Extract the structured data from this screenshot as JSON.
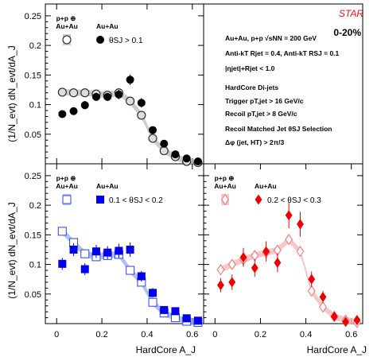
{
  "chart_data": [
    {
      "type": "scatter",
      "panel": "top-left",
      "x": [
        0.025,
        0.075,
        0.125,
        0.175,
        0.225,
        0.275,
        0.325,
        0.375,
        0.425,
        0.475,
        0.525,
        0.575,
        0.625
      ],
      "xlim": [
        -0.05,
        0.65
      ],
      "ylim": [
        0.0,
        0.27
      ],
      "ylabel": "(1/N_evt) dN_evt/dA_J",
      "legend": {
        "pp_label": "p+p ⊕ Au+Au",
        "auau_label": "Au+Au",
        "selection": "θSJ > 0.1"
      },
      "series": [
        {
          "name": "p+p ⊕ Au+Au",
          "style": "open-circle",
          "color": "#888888",
          "values": [
            0.121,
            0.12,
            0.12,
            0.118,
            0.116,
            0.12,
            0.106,
            0.082,
            0.043,
            0.022,
            0.012,
            0.004,
            0.002
          ]
        },
        {
          "name": "Au+Au",
          "style": "filled-circle",
          "color": "#000000",
          "values": [
            0.084,
            0.089,
            0.099,
            0.113,
            0.113,
            0.117,
            0.142,
            0.103,
            0.057,
            0.034,
            0.016,
            0.009,
            0.004
          ],
          "errors": [
            0.006,
            0.006,
            0.007,
            0.007,
            0.007,
            0.008,
            0.009,
            0.008,
            0.006,
            0.005,
            0.004,
            0.003,
            0.002
          ]
        }
      ]
    },
    {
      "type": "scatter",
      "panel": "bottom-left",
      "x": [
        0.025,
        0.075,
        0.125,
        0.175,
        0.225,
        0.275,
        0.325,
        0.375,
        0.425,
        0.475,
        0.525,
        0.575,
        0.625
      ],
      "xlim": [
        -0.05,
        0.65
      ],
      "ylim": [
        0.0,
        0.27
      ],
      "xlabel": "HardCore A_J",
      "ylabel": "(1/N_evt) dN_evt/dA_J",
      "legend": {
        "pp_label": "p+p ⊕ Au+Au",
        "auau_label": "Au+Au",
        "selection": "0.1 < θSJ < 0.2"
      },
      "series": [
        {
          "name": "p+p ⊕ Au+Au",
          "style": "open-square",
          "color": "#3355ee",
          "values": [
            0.156,
            0.137,
            0.118,
            0.113,
            0.115,
            0.117,
            0.09,
            0.07,
            0.036,
            0.018,
            0.01,
            0.004,
            0.002
          ]
        },
        {
          "name": "Au+Au",
          "style": "filled-square",
          "color": "#0000ee",
          "values": [
            0.101,
            0.125,
            0.092,
            0.122,
            0.12,
            0.123,
            0.125,
            0.08,
            0.052,
            0.023,
            0.021,
            0.009,
            0.005
          ],
          "errors": [
            0.01,
            0.011,
            0.01,
            0.011,
            0.011,
            0.012,
            0.012,
            0.009,
            0.008,
            0.006,
            0.005,
            0.004,
            0.003
          ]
        }
      ]
    },
    {
      "type": "scatter",
      "panel": "bottom-right",
      "x": [
        0.025,
        0.075,
        0.125,
        0.175,
        0.225,
        0.275,
        0.325,
        0.375,
        0.425,
        0.475,
        0.525,
        0.575,
        0.625
      ],
      "xlim": [
        -0.05,
        0.65
      ],
      "ylim": [
        0.0,
        0.27
      ],
      "xlabel": "HardCore A_J",
      "legend": {
        "pp_label": "p+p ⊕ Au+Au",
        "auau_label": "Au+Au",
        "selection": "0.2 < θSJ < 0.3"
      },
      "series": [
        {
          "name": "p+p ⊕ Au+Au",
          "style": "open-diamond",
          "color": "#ee7777",
          "values": [
            0.091,
            0.1,
            0.108,
            0.115,
            0.12,
            0.124,
            0.142,
            0.122,
            0.055,
            0.028,
            0.012,
            0.006,
            0.002
          ]
        },
        {
          "name": "Au+Au",
          "style": "filled-diamond",
          "color": "#ee0000",
          "values": [
            0.065,
            0.07,
            0.112,
            0.094,
            0.122,
            0.103,
            0.183,
            0.168,
            0.075,
            0.045,
            0.012,
            0.003,
            0.006
          ],
          "errors": [
            0.012,
            0.013,
            0.016,
            0.015,
            0.017,
            0.016,
            0.022,
            0.021,
            0.013,
            0.01,
            0.006,
            0.004,
            0.003
          ]
        }
      ]
    }
  ],
  "info_panel": {
    "logo": "STAR",
    "centrality": "0-20%",
    "lines": [
      "Au+Au, p+p √sNN = 200 GeV",
      "Anti-kT Rjet = 0.4, Anti-kT RSJ = 0.1",
      "|ηjet|+Rjet < 1.0",
      "",
      "HardCore Di-jets",
      "Trigger pT,jet > 16 GeV/c",
      "Recoil pT,jet > 8 GeV/c",
      "",
      "Recoil Matched Jet θSJ Selection",
      "Δφ (jet, HT) > 2π/3"
    ]
  },
  "axes": {
    "y_ticks": [
      "0.05",
      "0.1",
      "0.15",
      "0.2",
      "0.25"
    ],
    "x_ticks": [
      "0",
      "0.2",
      "0.4",
      "0.6"
    ],
    "xlabel_main": "HardCore",
    "xlabel_sub": "A",
    "xlabel_subsub": "J"
  },
  "colors": {
    "pp_top": "#bbbbbb",
    "pp_blue": "#9aa8f5",
    "pp_red": "#f5b5b5",
    "star_red": "#ee1111"
  }
}
